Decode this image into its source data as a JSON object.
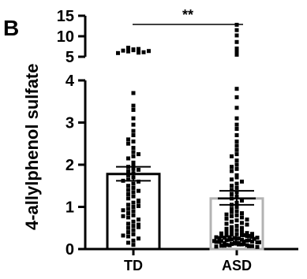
{
  "chart_data": {
    "type": "scatter",
    "panel_label": "B",
    "ylabel": "4-allylphenol sulfate",
    "categories": [
      "TD",
      "ASD"
    ],
    "y_axis_lower": {
      "range": [
        0,
        4
      ],
      "ticks": [
        "0",
        "1",
        "2",
        "3",
        "4"
      ]
    },
    "y_axis_upper": {
      "range": [
        5,
        15
      ],
      "ticks": [
        "5",
        "10",
        "15"
      ]
    },
    "axis_break": true,
    "significance": "**",
    "bars": [
      {
        "category": "TD",
        "mean": 1.78,
        "sem_low": 1.62,
        "sem_high": 1.95,
        "bar_color": "#000000"
      },
      {
        "category": "ASD",
        "mean": 1.2,
        "sem_low": 1.05,
        "sem_high": 1.38,
        "bar_color": "#b3b3b3"
      }
    ],
    "series": [
      {
        "category": "TD",
        "values": [
          6.6,
          6.3,
          6.8,
          6.0,
          7.2,
          6.5,
          6.1,
          6.9,
          5.9,
          6.4,
          3.7,
          3.4,
          3.3,
          3.1,
          2.95,
          2.8,
          2.7,
          2.55,
          2.4,
          2.3,
          2.2,
          2.15,
          2.05,
          2.0,
          1.95,
          1.9,
          1.85,
          1.8,
          1.75,
          1.7,
          1.65,
          1.6,
          1.55,
          1.5,
          1.45,
          1.4,
          1.35,
          1.3,
          1.25,
          1.2,
          1.15,
          1.1,
          1.05,
          1.0,
          0.95,
          0.9,
          0.85,
          0.8,
          0.75,
          0.7,
          0.65,
          0.6,
          0.55,
          0.5,
          0.45,
          0.4,
          0.35,
          0.3,
          0.25,
          0.2,
          0.15,
          0.1,
          2.6,
          2.5,
          1.02,
          0.78,
          0.58,
          1.62,
          1.38,
          0.92,
          0.52,
          0.32,
          2.25,
          1.88,
          1.12
        ]
      },
      {
        "category": "ASD",
        "values": [
          12.8,
          11.5,
          10.2,
          8.6,
          7.0,
          6.1,
          5.5,
          3.8,
          3.6,
          3.35,
          3.1,
          2.95,
          2.85,
          2.7,
          2.55,
          2.45,
          2.35,
          2.25,
          2.2,
          2.1,
          2.0,
          1.95,
          1.9,
          1.85,
          1.75,
          1.7,
          1.65,
          1.6,
          1.55,
          1.5,
          1.45,
          1.4,
          1.35,
          1.3,
          1.25,
          1.2,
          1.15,
          1.1,
          1.05,
          1.0,
          0.95,
          0.9,
          0.88,
          0.85,
          0.82,
          0.8,
          0.78,
          0.75,
          0.72,
          0.7,
          0.68,
          0.65,
          0.62,
          0.6,
          0.58,
          0.55,
          0.52,
          0.5,
          0.48,
          0.45,
          0.43,
          0.41,
          0.4,
          0.38,
          0.37,
          0.35,
          0.34,
          0.33,
          0.32,
          0.31,
          0.3,
          0.29,
          0.28,
          0.27,
          0.26,
          0.25,
          0.24,
          0.23,
          0.22,
          0.21,
          0.2,
          0.19,
          0.18,
          0.17,
          0.16,
          0.15,
          0.14,
          0.13,
          0.12,
          0.11,
          0.1,
          0.09,
          0.08,
          0.07,
          0.06,
          0.05,
          0.36,
          0.28,
          0.22,
          0.18,
          0.14,
          0.33,
          0.27,
          0.21,
          0.17,
          0.13,
          0.11,
          0.09,
          0.31,
          0.26,
          0.24,
          0.19,
          0.16,
          0.12,
          0.08,
          0.07
        ]
      }
    ]
  }
}
